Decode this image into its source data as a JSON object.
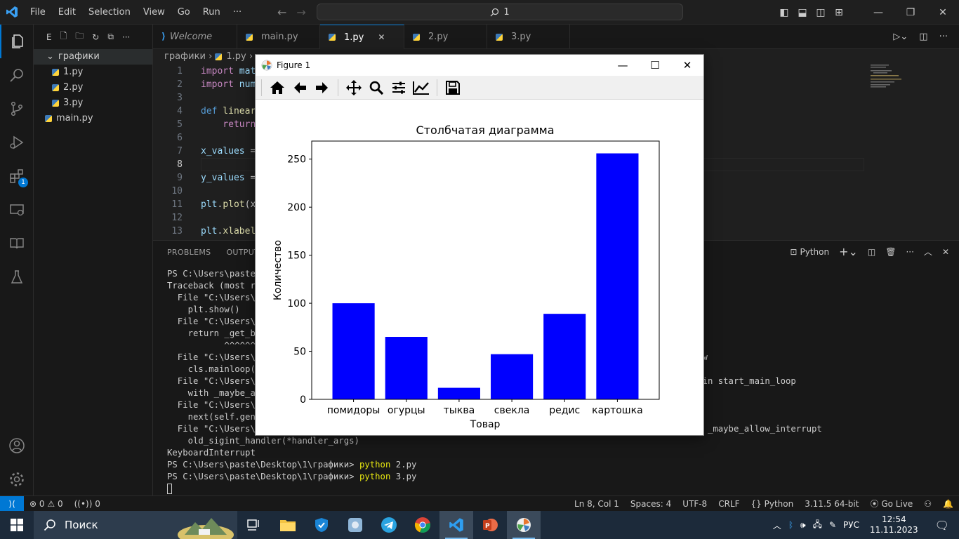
{
  "titlebar": {
    "menu": [
      "File",
      "Edit",
      "Selection",
      "View",
      "Go",
      "Run",
      "···"
    ],
    "command_center": "1"
  },
  "activity_badge": "1",
  "sidebar": {
    "header_letter": "E",
    "folder": "графики",
    "files": [
      "1.py",
      "2.py",
      "3.py"
    ],
    "root_file": "main.py"
  },
  "tabs": [
    {
      "label": "Welcome",
      "italic": true
    },
    {
      "label": "main.py"
    },
    {
      "label": "1.py",
      "active": true
    },
    {
      "label": "2.py"
    },
    {
      "label": "3.py"
    }
  ],
  "breadcrumb": {
    "folder": "графики",
    "file": "1.py"
  },
  "editor": {
    "current_line": "8",
    "lines": [
      {
        "n": "1",
        "parts": [
          {
            "c": "kw",
            "t": "import"
          },
          {
            "c": "var",
            "t": " mat"
          }
        ]
      },
      {
        "n": "2",
        "parts": [
          {
            "c": "kw",
            "t": "import"
          },
          {
            "c": "var",
            "t": " num"
          }
        ]
      },
      {
        "n": "3",
        "parts": []
      },
      {
        "n": "4",
        "parts": [
          {
            "c": "def",
            "t": "def"
          },
          {
            "c": "fn",
            "t": " linear"
          }
        ]
      },
      {
        "n": "5",
        "parts": [
          {
            "c": "kw",
            "t": "    return"
          }
        ]
      },
      {
        "n": "6",
        "parts": []
      },
      {
        "n": "7",
        "parts": [
          {
            "c": "var",
            "t": "x_values"
          },
          {
            "c": "",
            "t": " ="
          }
        ]
      },
      {
        "n": "8",
        "parts": []
      },
      {
        "n": "9",
        "parts": [
          {
            "c": "var",
            "t": "y_values"
          },
          {
            "c": "",
            "t": " ="
          }
        ]
      },
      {
        "n": "10",
        "parts": []
      },
      {
        "n": "11",
        "parts": [
          {
            "c": "var",
            "t": "plt"
          },
          {
            "c": "",
            "t": "."
          },
          {
            "c": "fn",
            "t": "plot"
          },
          {
            "c": "",
            "t": "(x"
          }
        ]
      },
      {
        "n": "12",
        "parts": []
      },
      {
        "n": "13",
        "parts": [
          {
            "c": "var",
            "t": "plt"
          },
          {
            "c": "",
            "t": "."
          },
          {
            "c": "fn",
            "t": "xlabel"
          }
        ]
      }
    ]
  },
  "panel": {
    "tabs": [
      "PROBLEMS",
      "OUTPUT"
    ],
    "shell": "Python"
  },
  "terminal": [
    [
      {
        "t": "PS C:\\Users\\paste"
      },
      {
        "t": "                                                                   "
      }
    ],
    [
      {
        "t": "Traceback (most re"
      }
    ],
    [
      {
        "t": "  File \"C:\\Users\\p"
      }
    ],
    [
      {
        "t": "    plt.show()"
      }
    ],
    [
      {
        "t": "  File \"C:\\Users\\p                                                                    527, in show"
      }
    ],
    [
      {
        "t": "    return _get_ba"
      }
    ],
    [
      {
        "t": "           ^^^^^^^"
      }
    ],
    [
      {
        "t": "  File \"C:\\Users\\p                                                                  , line 3448, in show"
      }
    ],
    [
      {
        "t": "    cls.mainloop()"
      }
    ],
    [
      {
        "t": "  File \"C:\\Users\\p                                                                   qt.py\", line 593, in start_main_loop"
      }
    ],
    [
      {
        "t": "    with _maybe_al"
      }
    ],
    [
      {
        "t": "  File \"C:\\Users\\p"
      }
    ],
    [
      {
        "t": "    next(self.gen)"
      }
    ],
    [
      {
        "t": "  File \"C:\\Users\\p                                                                  t.py\", line 230, in _maybe_allow_interrupt"
      }
    ],
    [
      {
        "t": "    old_sigint_handler(*handler_args)"
      }
    ],
    [
      {
        "t": "KeyboardInterrupt"
      }
    ],
    [
      {
        "t": "PS C:\\Users\\paste\\Desktop\\1\\графики> "
      },
      {
        "t": "python",
        "c": "yel"
      },
      {
        "t": " 2.py"
      }
    ],
    [
      {
        "t": "PS C:\\Users\\paste\\Desktop\\1\\графики> "
      },
      {
        "t": "python",
        "c": "yel"
      },
      {
        "t": " 3.py"
      }
    ]
  ],
  "statusbar": {
    "errors": "0",
    "warnings": "0",
    "ports": "0",
    "position": "Ln 8, Col 1",
    "spaces": "Spaces: 4",
    "encoding": "UTF-8",
    "eol": "CRLF",
    "language": "Python",
    "interpreter": "3.11.5 64-bit",
    "golive": "Go Live"
  },
  "taskbar": {
    "search": "Поиск",
    "lang": "РУС",
    "time": "12:54",
    "date": "11.11.2023"
  },
  "figure": {
    "title": "Figure 1"
  },
  "colors": {
    "bar": "#0000ff",
    "accent": "#0078d4"
  },
  "chart_data": {
    "type": "bar",
    "title": "Столбчатая диаграмма",
    "xlabel": "Товар",
    "ylabel": "Количество",
    "categories": [
      "помидоры",
      "огурцы",
      "тыква",
      "свекла",
      "редис",
      "картошка"
    ],
    "values": [
      100,
      65,
      12,
      47,
      89,
      256
    ],
    "ylim": [
      0,
      268.8
    ],
    "yticks": [
      0,
      50,
      100,
      150,
      200,
      250
    ],
    "grid": false
  }
}
